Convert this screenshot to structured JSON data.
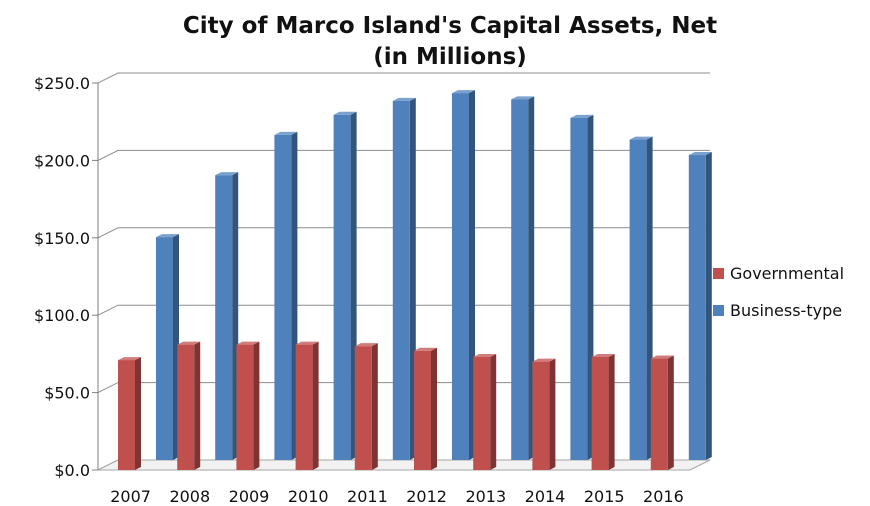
{
  "chart_data": {
    "type": "bar",
    "title_line1": "City of Marco Island's Capital Assets, Net",
    "title_line2": "(in Millions)",
    "categories": [
      "2007",
      "2008",
      "2009",
      "2010",
      "2011",
      "2012",
      "2013",
      "2014",
      "2015",
      "2016"
    ],
    "series": [
      {
        "name": "Governmental",
        "color": "#C0504D",
        "values": [
          71,
          81,
          81,
          81,
          80,
          77,
          73,
          70,
          73,
          72
        ]
      },
      {
        "name": "Business-type",
        "color": "#4F81BD",
        "values": [
          144,
          184,
          210,
          223,
          232,
          237,
          233,
          221,
          207,
          197
        ]
      }
    ],
    "y_ticks": [
      "$0.0",
      "$50.0",
      "$100.0",
      "$150.0",
      "$200.0",
      "$250.0"
    ],
    "ylim": [
      0,
      250
    ],
    "grid": true,
    "legend_position": "right"
  }
}
